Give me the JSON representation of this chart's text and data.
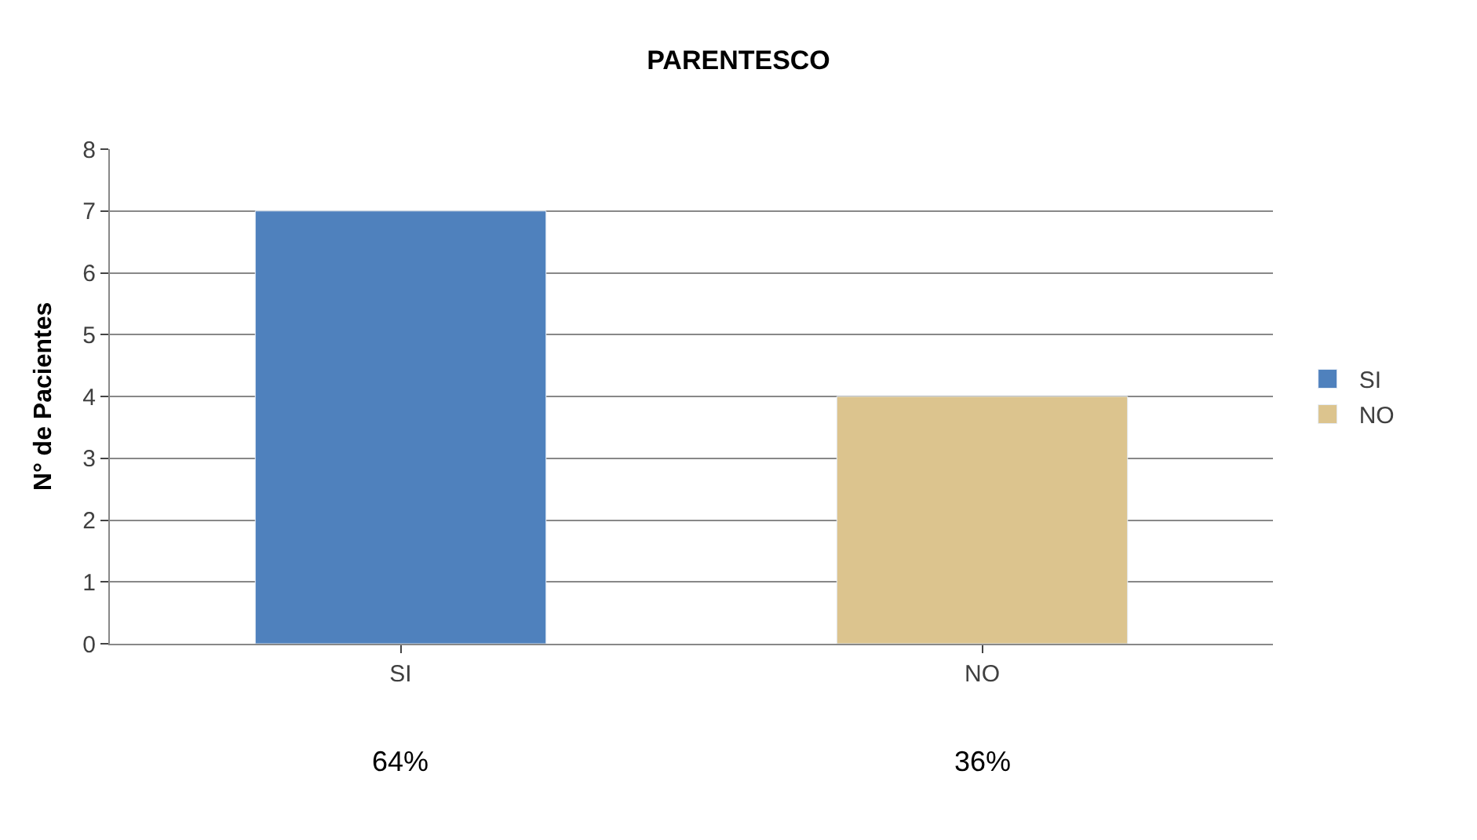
{
  "chart_data": {
    "type": "bar",
    "title": "PARENTESCO",
    "ylabel": "N° de Pacientes",
    "categories": [
      "SI",
      "NO"
    ],
    "series": [
      {
        "name": "SI",
        "color": "#4f81bd",
        "values": [
          7,
          null
        ]
      },
      {
        "name": "NO",
        "color": "#dcc48e",
        "values": [
          null,
          4
        ]
      }
    ],
    "ylim": [
      0,
      8
    ],
    "yticks": [
      0,
      1,
      2,
      3,
      4,
      5,
      6,
      7,
      8
    ],
    "grid": "y",
    "legend": "right",
    "annotations": [
      "64%",
      "36%"
    ]
  }
}
